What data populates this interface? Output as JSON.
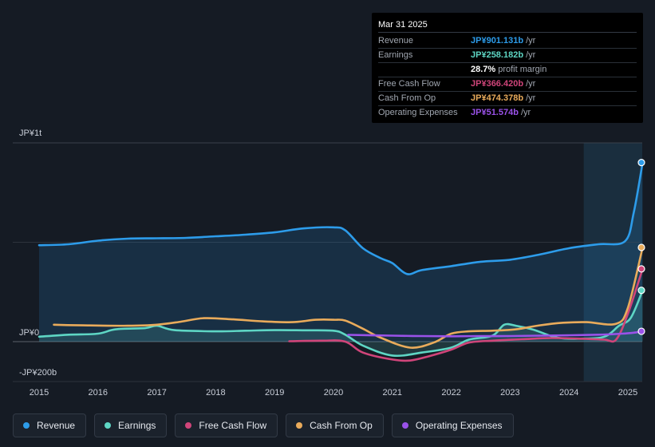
{
  "chart_data": {
    "type": "line",
    "y_labels": {
      "top": "JP¥1t",
      "zero": "JP¥0",
      "bottom": "-JP¥200b"
    },
    "ylim": [
      -200,
      1000
    ],
    "x_ticks": [
      "2015",
      "2016",
      "2017",
      "2018",
      "2019",
      "2020",
      "2021",
      "2022",
      "2023",
      "2024",
      "2025"
    ],
    "x_tick_values": [
      2015,
      2016,
      2017,
      2018,
      2019,
      2020,
      2021,
      2022,
      2023,
      2024,
      2025
    ],
    "xlim": [
      2015,
      2025.25
    ],
    "forecast_start": 2024.25,
    "series": [
      {
        "name": "Revenue",
        "color": "#2d9cea",
        "points": [
          [
            2015,
            485
          ],
          [
            2015.5,
            490
          ],
          [
            2016,
            508
          ],
          [
            2016.5,
            518
          ],
          [
            2017,
            520
          ],
          [
            2017.5,
            522
          ],
          [
            2018,
            530
          ],
          [
            2018.5,
            538
          ],
          [
            2019,
            550
          ],
          [
            2019.5,
            570
          ],
          [
            2020,
            575
          ],
          [
            2020.2,
            560
          ],
          [
            2020.5,
            470
          ],
          [
            2020.8,
            420
          ],
          [
            2021,
            395
          ],
          [
            2021.25,
            340
          ],
          [
            2021.5,
            360
          ],
          [
            2022,
            380
          ],
          [
            2022.5,
            402
          ],
          [
            2023,
            412
          ],
          [
            2023.5,
            438
          ],
          [
            2024,
            470
          ],
          [
            2024.5,
            490
          ],
          [
            2024.95,
            505
          ],
          [
            2025.1,
            650
          ],
          [
            2025.25,
            901
          ]
        ],
        "area": true
      },
      {
        "name": "Earnings",
        "color": "#5ed6c4",
        "points": [
          [
            2015,
            25
          ],
          [
            2015.5,
            35
          ],
          [
            2016,
            40
          ],
          [
            2016.3,
            62
          ],
          [
            2016.8,
            68
          ],
          [
            2017,
            80
          ],
          [
            2017.3,
            58
          ],
          [
            2018,
            52
          ],
          [
            2018.5,
            55
          ],
          [
            2019,
            58
          ],
          [
            2019.5,
            57
          ],
          [
            2020,
            55
          ],
          [
            2020.2,
            35
          ],
          [
            2020.5,
            -20
          ],
          [
            2021,
            -70
          ],
          [
            2021.5,
            -55
          ],
          [
            2022,
            -30
          ],
          [
            2022.3,
            10
          ],
          [
            2022.7,
            30
          ],
          [
            2022.9,
            85
          ],
          [
            2023.1,
            80
          ],
          [
            2023.4,
            60
          ],
          [
            2023.8,
            20
          ],
          [
            2024.2,
            15
          ],
          [
            2024.6,
            25
          ],
          [
            2024.85,
            80
          ],
          [
            2025.05,
            120
          ],
          [
            2025.25,
            258
          ]
        ],
        "area": true
      },
      {
        "name": "Free Cash Flow",
        "color": "#d0457a",
        "points": [
          [
            2019.25,
            2
          ],
          [
            2019.8,
            5
          ],
          [
            2020.2,
            0
          ],
          [
            2020.5,
            -55
          ],
          [
            2021,
            -90
          ],
          [
            2021.3,
            -95
          ],
          [
            2021.6,
            -75
          ],
          [
            2022,
            -40
          ],
          [
            2022.3,
            -5
          ],
          [
            2022.7,
            5
          ],
          [
            2023.2,
            12
          ],
          [
            2023.7,
            18
          ],
          [
            2024.2,
            15
          ],
          [
            2024.6,
            10
          ],
          [
            2024.8,
            10
          ],
          [
            2025,
            140
          ],
          [
            2025.25,
            366
          ]
        ],
        "area": false
      },
      {
        "name": "Cash From Op",
        "color": "#e9ab5b",
        "points": [
          [
            2015.25,
            85
          ],
          [
            2015.75,
            82
          ],
          [
            2016.5,
            80
          ],
          [
            2017,
            85
          ],
          [
            2017.4,
            100
          ],
          [
            2017.8,
            118
          ],
          [
            2018.3,
            112
          ],
          [
            2018.8,
            102
          ],
          [
            2019.3,
            98
          ],
          [
            2019.7,
            110
          ],
          [
            2020,
            110
          ],
          [
            2020.2,
            106
          ],
          [
            2020.5,
            65
          ],
          [
            2020.8,
            20
          ],
          [
            2021.3,
            -30
          ],
          [
            2021.7,
            -5
          ],
          [
            2022,
            40
          ],
          [
            2022.3,
            52
          ],
          [
            2022.7,
            55
          ],
          [
            2023.1,
            62
          ],
          [
            2023.5,
            82
          ],
          [
            2023.9,
            95
          ],
          [
            2024.3,
            98
          ],
          [
            2024.8,
            90
          ],
          [
            2025,
            170
          ],
          [
            2025.25,
            474
          ]
        ],
        "area": false
      },
      {
        "name": "Operating Expenses",
        "color": "#9a52e9",
        "points": [
          [
            2020.25,
            34
          ],
          [
            2021,
            30
          ],
          [
            2021.5,
            28
          ],
          [
            2022,
            27
          ],
          [
            2022.5,
            28
          ],
          [
            2023,
            28
          ],
          [
            2023.5,
            30
          ],
          [
            2024,
            32
          ],
          [
            2024.5,
            35
          ],
          [
            2024.9,
            40
          ],
          [
            2025.1,
            45
          ],
          [
            2025.25,
            52
          ]
        ],
        "area": false
      }
    ]
  },
  "tooltip": {
    "date": "Mar 31 2025",
    "rows": [
      {
        "label": "Revenue",
        "value": "JP¥901.131b",
        "unit": "/yr",
        "color": "#2d9cea"
      },
      {
        "label": "Earnings",
        "value": "JP¥258.182b",
        "unit": "/yr",
        "color": "#5ed6c4"
      },
      {
        "label": "",
        "value": "28.7%",
        "unit": "profit margin",
        "color": "#ffffff"
      },
      {
        "label": "Free Cash Flow",
        "value": "JP¥366.420b",
        "unit": "/yr",
        "color": "#d0457a"
      },
      {
        "label": "Cash From Op",
        "value": "JP¥474.378b",
        "unit": "/yr",
        "color": "#e9ab5b"
      },
      {
        "label": "Operating Expenses",
        "value": "JP¥51.574b",
        "unit": "/yr",
        "color": "#9a52e9"
      }
    ]
  },
  "legend": [
    {
      "label": "Revenue",
      "color": "#2d9cea"
    },
    {
      "label": "Earnings",
      "color": "#5ed6c4"
    },
    {
      "label": "Free Cash Flow",
      "color": "#d0457a"
    },
    {
      "label": "Cash From Op",
      "color": "#e9ab5b"
    },
    {
      "label": "Operating Expenses",
      "color": "#9a52e9"
    }
  ]
}
